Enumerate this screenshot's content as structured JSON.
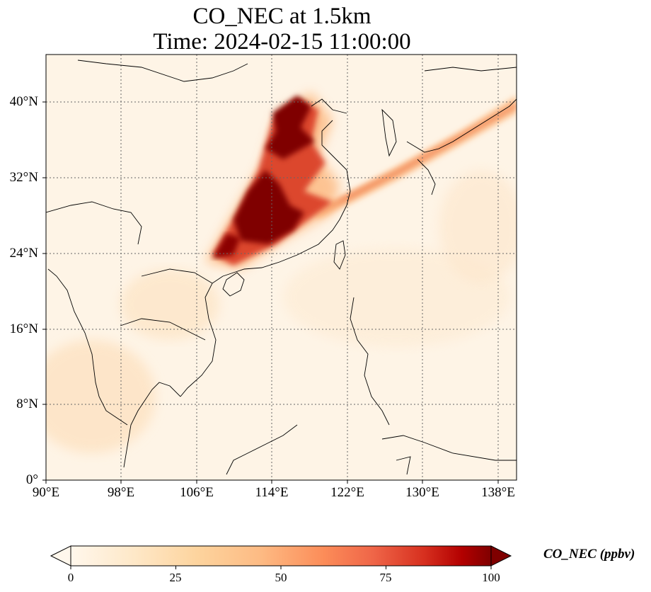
{
  "title_line1": "CO_NEC at 1.5km",
  "title_line2": "Time: 2024-02-15 11:00:00",
  "map": {
    "lon_range": [
      90,
      140
    ],
    "lat_range": [
      0,
      44
    ],
    "lat_ticks": [
      "40°N",
      "32°N",
      "24°N",
      "16°N",
      "8°N",
      "0°"
    ],
    "lon_ticks": [
      "90°E",
      "98°E",
      "106°E",
      "114°E",
      "122°E",
      "130°E",
      "138°E"
    ],
    "gridlines": "dotted",
    "colormap": "OrRd",
    "colors": {
      "low": "#fff7ec",
      "mid": "#fdbb84",
      "high": "#7f0000",
      "coast": "#000000",
      "grid": "#666666"
    }
  },
  "colorbar": {
    "label": "CO_NEC (ppbv)",
    "ticks": [
      "0",
      "25",
      "50",
      "75",
      "100"
    ],
    "range": [
      0,
      100
    ],
    "extend": "both"
  }
}
